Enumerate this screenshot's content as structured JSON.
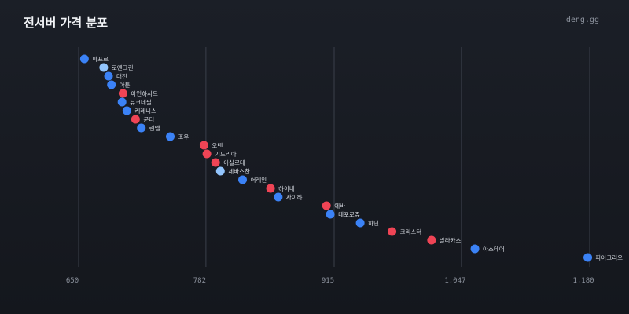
{
  "header": {
    "title": "전서버 가격 분포",
    "brand": "deng.gg"
  },
  "colors": {
    "blue": "#3b82f6",
    "light_blue": "#93c5fd",
    "red": "#ef4455"
  },
  "chart_data": {
    "type": "scatter",
    "title": "전서버 가격 분포",
    "xlim": [
      650,
      1180
    ],
    "x_ticks": [
      650,
      782,
      915,
      1047,
      1180
    ],
    "x_tick_labels": [
      "650",
      "782",
      "915",
      "1,047",
      "1,180"
    ],
    "grid": true,
    "points": [
      {
        "label": "마프르",
        "value": 656,
        "color": "blue"
      },
      {
        "label": "로엔그린",
        "value": 676,
        "color": "light_blue"
      },
      {
        "label": "대전",
        "value": 681,
        "color": "blue"
      },
      {
        "label": "아툰",
        "value": 684,
        "color": "blue"
      },
      {
        "label": "아인하사드",
        "value": 696,
        "color": "red"
      },
      {
        "label": "듀크데필",
        "value": 695,
        "color": "blue"
      },
      {
        "label": "케레니스",
        "value": 700,
        "color": "blue"
      },
      {
        "label": "군터",
        "value": 709,
        "color": "red"
      },
      {
        "label": "린델",
        "value": 715,
        "color": "blue"
      },
      {
        "label": "조우",
        "value": 745,
        "color": "blue"
      },
      {
        "label": "오렌",
        "value": 780,
        "color": "red"
      },
      {
        "label": "기드리아",
        "value": 783,
        "color": "red"
      },
      {
        "label": "이실로테",
        "value": 792,
        "color": "red"
      },
      {
        "label": "세바스찬",
        "value": 797,
        "color": "light_blue"
      },
      {
        "label": "어레인",
        "value": 820,
        "color": "blue"
      },
      {
        "label": "하이네",
        "value": 849,
        "color": "red"
      },
      {
        "label": "사이하",
        "value": 857,
        "color": "blue"
      },
      {
        "label": "에바",
        "value": 907,
        "color": "red"
      },
      {
        "label": "데포로쥬",
        "value": 911,
        "color": "blue"
      },
      {
        "label": "하딘",
        "value": 942,
        "color": "blue"
      },
      {
        "label": "크리스터",
        "value": 975,
        "color": "red"
      },
      {
        "label": "발라카스",
        "value": 1016,
        "color": "red"
      },
      {
        "label": "아스테어",
        "value": 1061,
        "color": "blue"
      },
      {
        "label": "파아그리오",
        "value": 1178,
        "color": "blue"
      }
    ]
  }
}
